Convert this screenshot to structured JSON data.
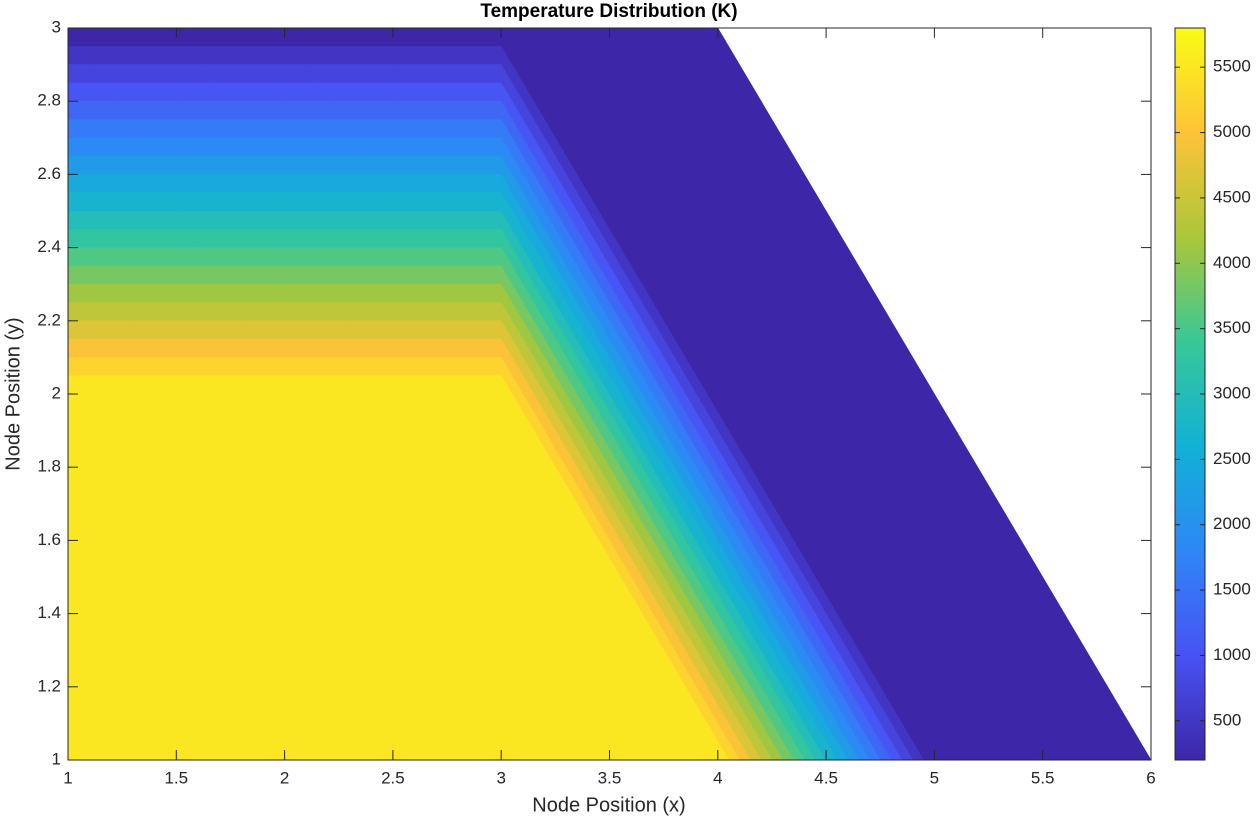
{
  "chart_data": {
    "type": "contourf",
    "title": "Temperature Distribution (K)",
    "x_label": "Node Position (x)",
    "y_label": "Node Position (y)",
    "x": [
      1,
      1.5,
      2,
      2.5,
      3,
      3.5,
      4,
      4.5,
      5,
      5.5,
      6
    ],
    "y": [
      1,
      1.5,
      2,
      2.5,
      3
    ],
    "z": [
      [
        5800,
        5800,
        5800,
        5800,
        5800,
        5800,
        5800,
        3000,
        200,
        200,
        200
      ],
      [
        5800,
        5800,
        5800,
        5800,
        5800,
        5800,
        3000,
        200,
        200,
        200,
        null
      ],
      [
        5800,
        5800,
        5800,
        5800,
        5800,
        3000,
        200,
        200,
        200,
        null,
        null
      ],
      [
        3000,
        3000,
        3000,
        3000,
        3000,
        200,
        200,
        200,
        null,
        null,
        null
      ],
      [
        200,
        200,
        200,
        200,
        200,
        200,
        200,
        null,
        null,
        null,
        null
      ]
    ],
    "levels": 20,
    "colormap": [
      "#3e26a8",
      "#4852f4",
      "#2e87f7",
      "#12b1d6",
      "#37c897",
      "#abc739",
      "#fec338",
      "#f9fb15"
    ],
    "xlim": [
      1,
      6
    ],
    "ylim": [
      1,
      3
    ],
    "xticks": [
      1,
      1.5,
      2,
      2.5,
      3,
      3.5,
      4,
      4.5,
      5,
      5.5,
      6
    ],
    "yticks": [
      1,
      1.2,
      1.4,
      1.6,
      1.8,
      2,
      2.2,
      2.4,
      2.6,
      2.8,
      3
    ],
    "clim": [
      200,
      5800
    ],
    "colorbar_ticks": [
      500,
      1000,
      1500,
      2000,
      2500,
      3000,
      3500,
      4000,
      4500,
      5000,
      5500
    ]
  }
}
